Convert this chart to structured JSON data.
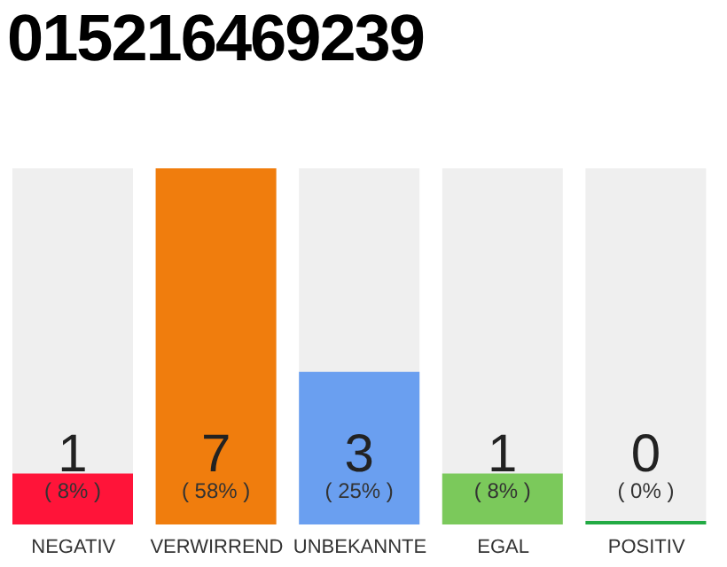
{
  "chart_data": {
    "type": "bar",
    "title": "015216469239",
    "categories": [
      "NEGATIV",
      "VERWIRREND",
      "UNBEKANNTE",
      "EGAL",
      "POSITIV"
    ],
    "values": [
      1,
      7,
      3,
      1,
      0
    ],
    "colors": [
      "#ff1439",
      "#f07d0d",
      "#6a9ff0",
      "#7bc95b",
      "#22aa44"
    ],
    "data_labels": true,
    "annotations": [
      "( 8% )",
      "( 58% )",
      "( 25% )",
      "( 8% )",
      "( 0% )"
    ],
    "grid": false,
    "legend": false
  }
}
